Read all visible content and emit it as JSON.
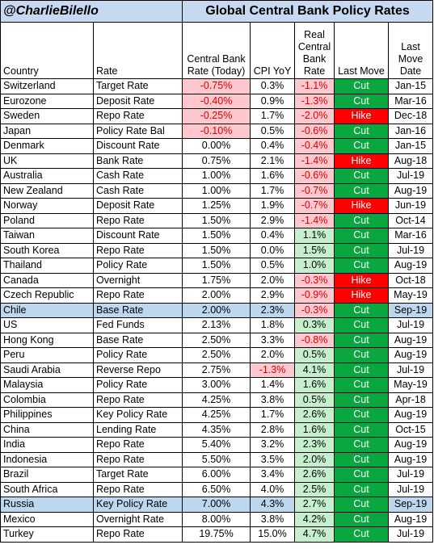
{
  "title_bar": {
    "handle": "@CharlieBilello",
    "title": "Global Central Bank Policy Rates"
  },
  "headers": {
    "country": "Country",
    "rate": "Rate",
    "cb_rate": "Central Bank Rate (Today)",
    "cpi": "CPI YoY",
    "real_rate": "Real Central Bank Rate",
    "last_move": "Last Move",
    "last_move_date": "Last Move Date"
  },
  "colors": {
    "cut": "#0aa640",
    "hike": "#ff0000",
    "negative_text": "#e00000",
    "negative_fill": "#ffc7ce",
    "positive_fill": "#c6efce",
    "highlight_row": "#bdd7ee",
    "title_fill": "#c6d9f1"
  },
  "rows": [
    {
      "country": "Switzerland",
      "rate": "Target Rate",
      "cb": "-0.75%",
      "cpi": "0.3%",
      "real": "-1.1%",
      "move": "Cut",
      "date": "Jan-15"
    },
    {
      "country": "Eurozone",
      "rate": "Deposit Rate",
      "cb": "-0.40%",
      "cpi": "0.9%",
      "real": "-1.3%",
      "move": "Cut",
      "date": "Mar-16"
    },
    {
      "country": "Sweden",
      "rate": "Repo Rate",
      "cb": "-0.25%",
      "cpi": "1.7%",
      "real": "-2.0%",
      "move": "Hike",
      "date": "Dec-18"
    },
    {
      "country": "Japan",
      "rate": "Policy Rate Bal",
      "cb": "-0.10%",
      "cpi": "0.5%",
      "real": "-0.6%",
      "move": "Cut",
      "date": "Jan-16"
    },
    {
      "country": "Denmark",
      "rate": "Discount Rate",
      "cb": "0.00%",
      "cpi": "0.4%",
      "real": "-0.4%",
      "move": "Cut",
      "date": "Jan-15"
    },
    {
      "country": "UK",
      "rate": "Bank Rate",
      "cb": "0.75%",
      "cpi": "2.1%",
      "real": "-1.4%",
      "move": "Hike",
      "date": "Aug-18"
    },
    {
      "country": "Australia",
      "rate": "Cash Rate",
      "cb": "1.00%",
      "cpi": "1.6%",
      "real": "-0.6%",
      "move": "Cut",
      "date": "Jul-19"
    },
    {
      "country": "New Zealand",
      "rate": "Cash Rate",
      "cb": "1.00%",
      "cpi": "1.7%",
      "real": "-0.7%",
      "move": "Cut",
      "date": "Aug-19"
    },
    {
      "country": "Norway",
      "rate": "Deposit Rate",
      "cb": "1.25%",
      "cpi": "1.9%",
      "real": "-0.7%",
      "move": "Hike",
      "date": "Jun-19"
    },
    {
      "country": "Poland",
      "rate": "Repo Rate",
      "cb": "1.50%",
      "cpi": "2.9%",
      "real": "-1.4%",
      "move": "Cut",
      "date": "Oct-14"
    },
    {
      "country": "Taiwan",
      "rate": "Discount Rate",
      "cb": "1.50%",
      "cpi": "0.4%",
      "real": "1.1%",
      "move": "Cut",
      "date": "Mar-16"
    },
    {
      "country": "South Korea",
      "rate": "Repo Rate",
      "cb": "1.50%",
      "cpi": "0.0%",
      "real": "1.5%",
      "move": "Cut",
      "date": "Jul-19"
    },
    {
      "country": "Thailand",
      "rate": "Policy Rate",
      "cb": "1.50%",
      "cpi": "0.5%",
      "real": "1.0%",
      "move": "Cut",
      "date": "Aug-19"
    },
    {
      "country": "Canada",
      "rate": "Overnight",
      "cb": "1.75%",
      "cpi": "2.0%",
      "real": "-0.3%",
      "move": "Hike",
      "date": "Oct-18"
    },
    {
      "country": "Czech Republic",
      "rate": "Repo Rate",
      "cb": "2.00%",
      "cpi": "2.9%",
      "real": "-0.9%",
      "move": "Hike",
      "date": "May-19"
    },
    {
      "country": "Chile",
      "rate": "Base Rate",
      "cb": "2.00%",
      "cpi": "2.3%",
      "real": "-0.3%",
      "move": "Cut",
      "date": "Sep-19",
      "highlight": true
    },
    {
      "country": "US",
      "rate": "Fed Funds",
      "cb": "2.13%",
      "cpi": "1.8%",
      "real": "0.3%",
      "move": "Cut",
      "date": "Jul-19"
    },
    {
      "country": "Hong Kong",
      "rate": "Base Rate",
      "cb": "2.50%",
      "cpi": "3.3%",
      "real": "-0.8%",
      "move": "Cut",
      "date": "Aug-19"
    },
    {
      "country": "Peru",
      "rate": "Policy Rate",
      "cb": "2.50%",
      "cpi": "2.0%",
      "real": "0.5%",
      "move": "Cut",
      "date": "Aug-19"
    },
    {
      "country": "Saudi Arabia",
      "rate": "Reverse Repo",
      "cb": "2.75%",
      "cpi": "-1.3%",
      "real": "4.1%",
      "move": "Cut",
      "date": "Jul-19"
    },
    {
      "country": "Malaysia",
      "rate": "Policy Rate",
      "cb": "3.00%",
      "cpi": "1.4%",
      "real": "1.6%",
      "move": "Cut",
      "date": "May-19"
    },
    {
      "country": "Colombia",
      "rate": "Repo Rate",
      "cb": "4.25%",
      "cpi": "3.8%",
      "real": "0.5%",
      "move": "Cut",
      "date": "Apr-18"
    },
    {
      "country": "Philippines",
      "rate": "Key Policy Rate",
      "cb": "4.25%",
      "cpi": "1.7%",
      "real": "2.6%",
      "move": "Cut",
      "date": "Aug-19"
    },
    {
      "country": "China",
      "rate": "Lending Rate",
      "cb": "4.35%",
      "cpi": "2.8%",
      "real": "1.6%",
      "move": "Cut",
      "date": "Oct-15"
    },
    {
      "country": "India",
      "rate": "Repo Rate",
      "cb": "5.40%",
      "cpi": "3.2%",
      "real": "2.3%",
      "move": "Cut",
      "date": "Aug-19"
    },
    {
      "country": "Indonesia",
      "rate": "Repo Rate",
      "cb": "5.50%",
      "cpi": "3.5%",
      "real": "2.0%",
      "move": "Cut",
      "date": "Aug-19"
    },
    {
      "country": "Brazil",
      "rate": "Target Rate",
      "cb": "6.00%",
      "cpi": "3.4%",
      "real": "2.6%",
      "move": "Cut",
      "date": "Jul-19"
    },
    {
      "country": "South Africa",
      "rate": "Repo Rate",
      "cb": "6.50%",
      "cpi": "4.0%",
      "real": "2.5%",
      "move": "Cut",
      "date": "Jul-19"
    },
    {
      "country": "Russia",
      "rate": "Key Policy Rate",
      "cb": "7.00%",
      "cpi": "4.3%",
      "real": "2.7%",
      "move": "Cut",
      "date": "Sep-19",
      "highlight": true
    },
    {
      "country": "Mexico",
      "rate": "Overnight Rate",
      "cb": "8.00%",
      "cpi": "3.8%",
      "real": "4.2%",
      "move": "Cut",
      "date": "Aug-19"
    },
    {
      "country": "Turkey",
      "rate": "Repo Rate",
      "cb": "19.75%",
      "cpi": "15.0%",
      "real": "4.7%",
      "move": "Cut",
      "date": "Jul-19"
    }
  ]
}
